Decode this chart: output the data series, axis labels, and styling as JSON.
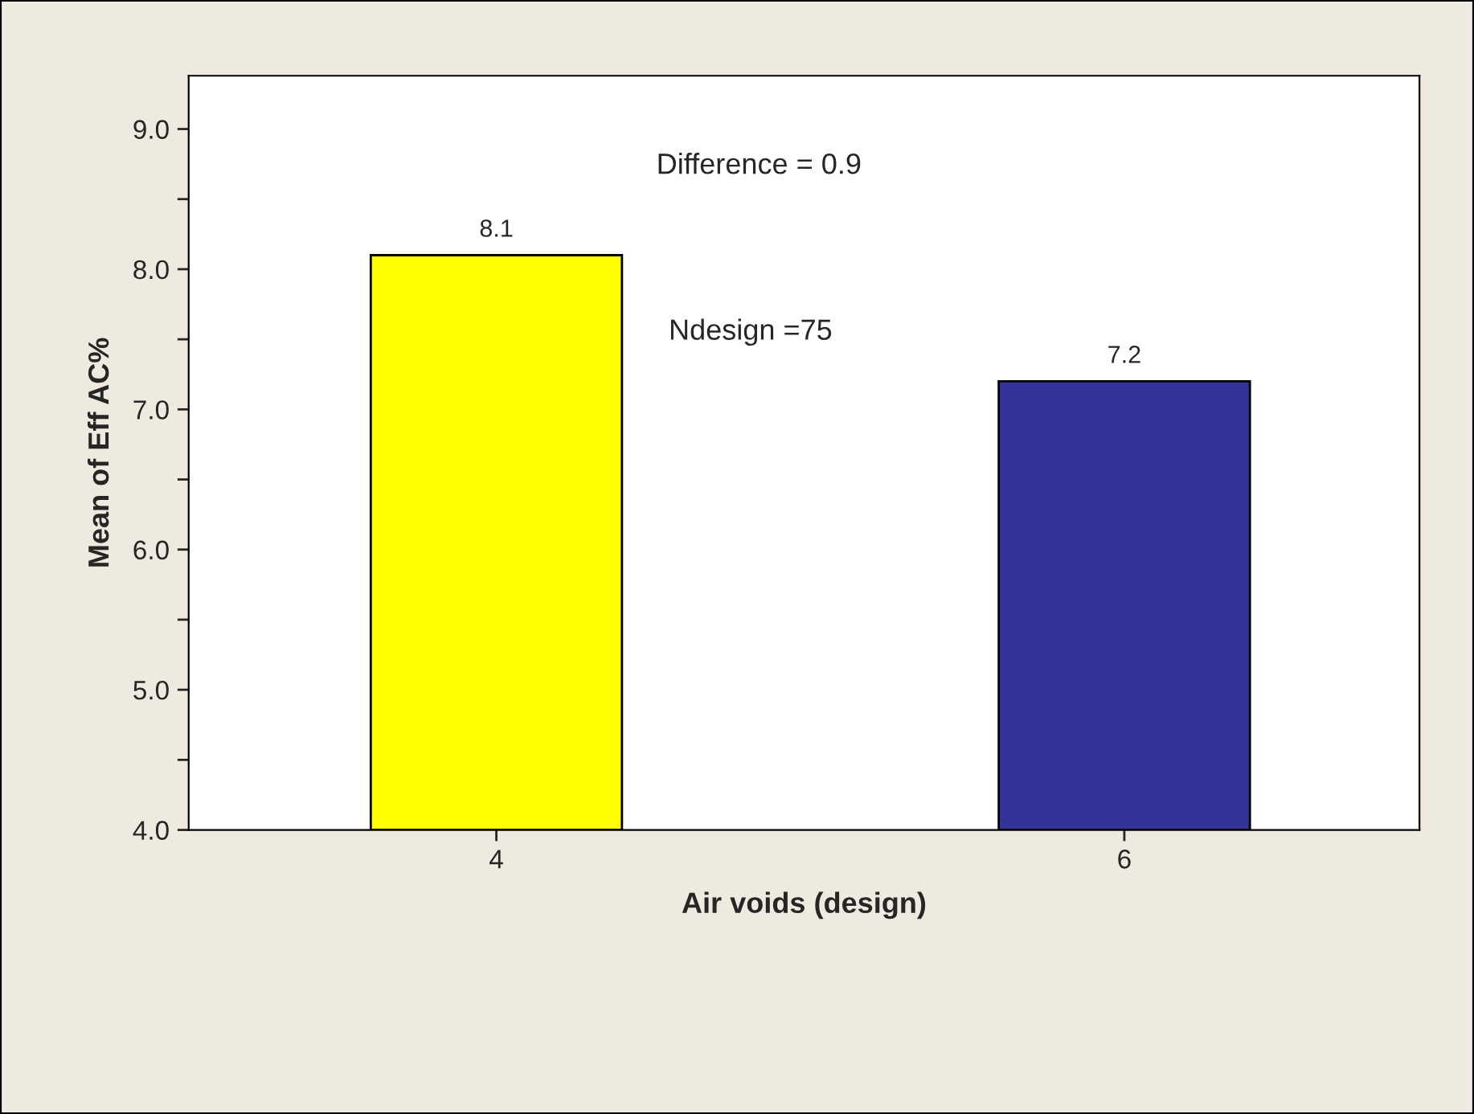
{
  "chart_data": {
    "type": "bar",
    "xlabel": "Air voids (design)",
    "ylabel": "Mean of Eff AC%",
    "categories": [
      "4",
      "6"
    ],
    "values": [
      8.1,
      7.2
    ],
    "colors": [
      "#ffff00",
      "#333399"
    ],
    "data_labels": true,
    "ylim": [
      4.0,
      9.38
    ],
    "yticks": [
      {
        "value": 4.0,
        "label": "4.0"
      },
      {
        "value": 4.5,
        "label": null
      },
      {
        "value": 5.0,
        "label": "5.0"
      },
      {
        "value": 5.5,
        "label": null
      },
      {
        "value": 6.0,
        "label": "6.0"
      },
      {
        "value": 6.5,
        "label": null
      },
      {
        "value": 7.0,
        "label": "7.0"
      },
      {
        "value": 7.5,
        "label": null
      },
      {
        "value": 8.0,
        "label": "8.0"
      },
      {
        "value": 8.5,
        "label": null
      },
      {
        "value": 9.0,
        "label": "9.0"
      }
    ],
    "annotations": [
      "Difference = 0.9",
      "Ndesign =75"
    ],
    "grid": false,
    "legend": false
  }
}
